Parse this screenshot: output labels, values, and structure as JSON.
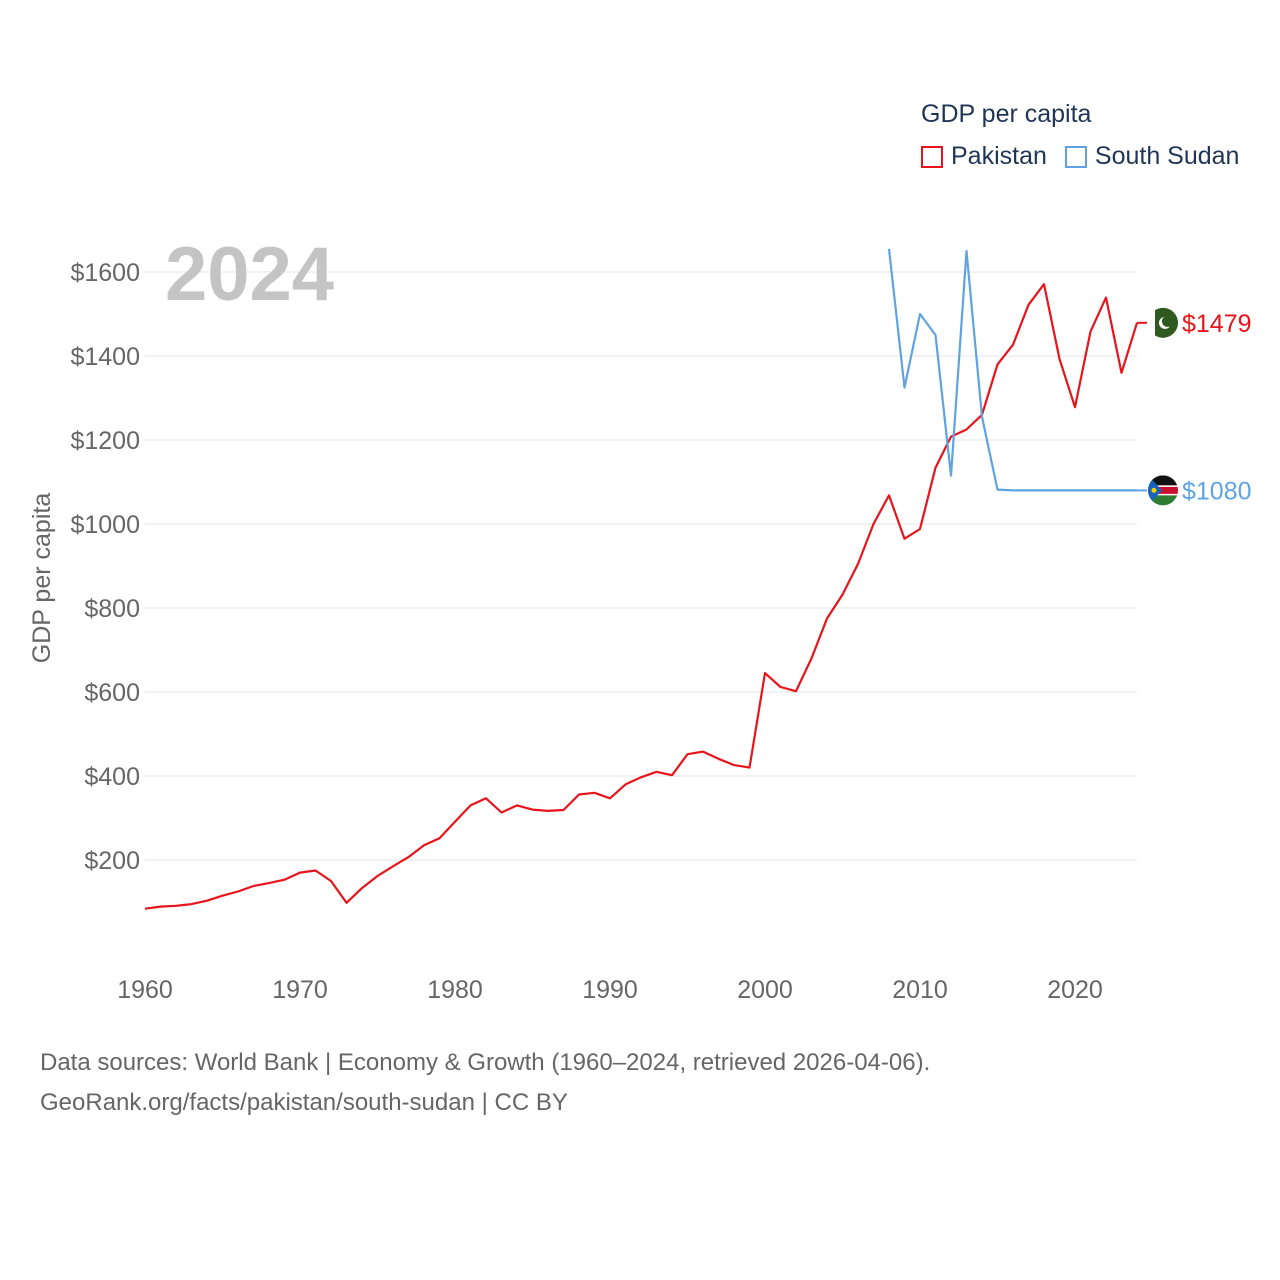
{
  "legend": {
    "title": "GDP per capita",
    "items": [
      {
        "label": "Pakistan",
        "color": "#e8141b"
      },
      {
        "label": "South Sudan",
        "color": "#5fa3e0"
      }
    ]
  },
  "footer": {
    "line1": "Data sources: World Bank | Economy & Growth (1960–2024, retrieved 2026-04-06).",
    "line2": "GeoRank.org/facts/pakistan/south-sudan | CC BY"
  },
  "chart_data": {
    "type": "line",
    "title": "GDP per capita",
    "year_label": "2024",
    "xlabel": "",
    "ylabel": "GDP per capita",
    "xlim": [
      1960,
      2024
    ],
    "ylim": [
      0,
      1700
    ],
    "x_ticks": [
      1960,
      1970,
      1980,
      1990,
      2000,
      2010,
      2020
    ],
    "x_tick_labels": [
      "1960",
      "1970",
      "1980",
      "1990",
      "2000",
      "2010",
      "2020"
    ],
    "y_ticks": [
      200,
      400,
      600,
      800,
      1000,
      1200,
      1400,
      1600
    ],
    "y_tick_labels": [
      "$200",
      "$400",
      "$600",
      "$800",
      "$1000",
      "$1200",
      "$1400",
      "$1600"
    ],
    "grid": true,
    "legend_position": "top-right",
    "series": [
      {
        "name": "Pakistan",
        "color": "#e8141b",
        "end_label": "$1479",
        "flag": "pakistan-flag-icon",
        "x": [
          1960,
          1961,
          1962,
          1963,
          1964,
          1965,
          1966,
          1967,
          1968,
          1969,
          1970,
          1971,
          1972,
          1973,
          1974,
          1975,
          1976,
          1977,
          1978,
          1979,
          1980,
          1981,
          1982,
          1983,
          1984,
          1985,
          1986,
          1987,
          1988,
          1989,
          1990,
          1991,
          1992,
          1993,
          1994,
          1995,
          1996,
          1997,
          1998,
          1999,
          2000,
          2001,
          2002,
          2003,
          2004,
          2005,
          2006,
          2007,
          2008,
          2009,
          2010,
          2011,
          2012,
          2013,
          2014,
          2015,
          2016,
          2017,
          2018,
          2019,
          2020,
          2021,
          2022,
          2023,
          2024
        ],
        "values": [
          84,
          89,
          91,
          95,
          103,
          115,
          125,
          138,
          145,
          153,
          170,
          175,
          150,
          98,
          133,
          162,
          185,
          207,
          235,
          252,
          291,
          330,
          347,
          313,
          330,
          320,
          317,
          319,
          356,
          360,
          347,
          380,
          397,
          410,
          402,
          452,
          458,
          441,
          426,
          420,
          645,
          612,
          602,
          680,
          775,
          832,
          905,
          1000,
          1068,
          965,
          988,
          1134,
          1208,
          1225,
          1260,
          1380,
          1427,
          1522,
          1571,
          1393,
          1278,
          1458,
          1539,
          1360,
          1479
        ]
      },
      {
        "name": "South Sudan",
        "color": "#5fa3e0",
        "end_label": "$1080",
        "flag": "south-sudan-flag-icon",
        "x": [
          2008,
          2009,
          2010,
          2011,
          2012,
          2013,
          2014,
          2015,
          2016,
          2017,
          2018,
          2019,
          2020,
          2021,
          2022,
          2023,
          2024
        ],
        "values": [
          1655,
          1325,
          1500,
          1450,
          1115,
          1650,
          1255,
          1082,
          1080,
          1080,
          1080,
          1080,
          1080,
          1080,
          1080,
          1080,
          1080
        ]
      }
    ]
  },
  "footer_source": "World Bank"
}
